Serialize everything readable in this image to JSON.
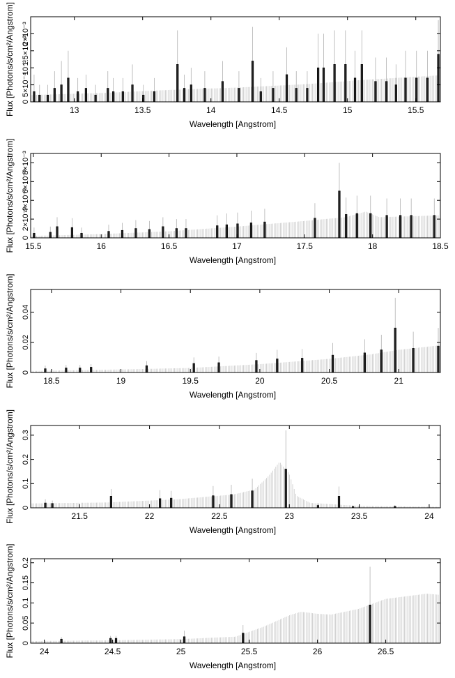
{
  "chart_data": [
    {
      "type": "bar",
      "xlabel": "Wavelength [Angstrom]",
      "ylabel": "Flux [Photons/s/cm²/Angstrom]",
      "xlim": [
        12.68,
        15.68
      ],
      "ylim": [
        0,
        0.0025
      ],
      "xticks": [
        13,
        13.5,
        14,
        14.5,
        15,
        15.5
      ],
      "xtick_labels": [
        "13",
        "13.5",
        "14",
        "14.5",
        "15",
        "15.5"
      ],
      "yticks": [
        0,
        0.0005,
        0.001,
        0.0015,
        0.002
      ],
      "ytick_labels": [
        "0",
        "5×10⁻⁴",
        "10⁻³",
        "1.5×10⁻³",
        "2×10⁻³"
      ],
      "model_points": [
        [
          12.68,
          0.0002
        ],
        [
          13.2,
          0.00026
        ],
        [
          13.7,
          0.00035
        ],
        [
          14.2,
          0.00042
        ],
        [
          14.7,
          0.00052
        ],
        [
          15.1,
          0.00064
        ],
        [
          15.68,
          0.00078
        ]
      ],
      "data_bars": [
        [
          12.7,
          0.0003,
          0.0005
        ],
        [
          12.74,
          0.0002,
          0.0003
        ],
        [
          12.8,
          0.0002,
          0.0003
        ],
        [
          12.85,
          0.0004,
          0.0005
        ],
        [
          12.9,
          0.0005,
          0.0007
        ],
        [
          12.95,
          0.0007,
          0.0008
        ],
        [
          13.02,
          0.0003,
          0.0004
        ],
        [
          13.08,
          0.0004,
          0.0004
        ],
        [
          13.15,
          0.0002,
          0.0003
        ],
        [
          13.24,
          0.0004,
          0.0005
        ],
        [
          13.28,
          0.0003,
          0.0004
        ],
        [
          13.35,
          0.0003,
          0.0004
        ],
        [
          13.42,
          0.0005,
          0.0006
        ],
        [
          13.5,
          0.0002,
          0.0003
        ],
        [
          13.58,
          0.0003,
          0.0004
        ],
        [
          13.75,
          0.0011,
          0.001
        ],
        [
          13.8,
          0.0004,
          0.0004
        ],
        [
          13.85,
          0.0005,
          0.0005
        ],
        [
          13.95,
          0.0004,
          0.0005
        ],
        [
          14.08,
          0.0006,
          0.0006
        ],
        [
          14.2,
          0.0004,
          0.0005
        ],
        [
          14.3,
          0.0012,
          0.001
        ],
        [
          14.36,
          0.0003,
          0.0004
        ],
        [
          14.45,
          0.0004,
          0.0005
        ],
        [
          14.55,
          0.0008,
          0.0008
        ],
        [
          14.62,
          0.0004,
          0.0005
        ],
        [
          14.7,
          0.0004,
          0.0005
        ],
        [
          14.78,
          0.001,
          0.001
        ],
        [
          14.82,
          0.001,
          0.001
        ],
        [
          14.9,
          0.0011,
          0.001
        ],
        [
          14.98,
          0.0011,
          0.001
        ],
        [
          15.05,
          0.0007,
          0.0008
        ],
        [
          15.1,
          0.0011,
          0.001
        ],
        [
          15.2,
          0.0006,
          0.0007
        ],
        [
          15.28,
          0.0006,
          0.0007
        ],
        [
          15.35,
          0.0005,
          0.0006
        ],
        [
          15.42,
          0.0007,
          0.0008
        ],
        [
          15.5,
          0.0007,
          0.0008
        ],
        [
          15.58,
          0.0007,
          0.0008
        ],
        [
          15.66,
          0.0014,
          0.001
        ]
      ]
    },
    {
      "type": "bar",
      "xlabel": "Wavelength [Angstrom]",
      "ylabel": "Flux [Photons/s/cm²/Angstrom]",
      "xlim": [
        15.48,
        18.5
      ],
      "ylim": [
        0,
        0.009
      ],
      "xticks": [
        15.5,
        16,
        16.5,
        17,
        17.5,
        18,
        18.5
      ],
      "xtick_labels": [
        "15.5",
        "16",
        "16.5",
        "17",
        "17.5",
        "18",
        "18.5"
      ],
      "yticks": [
        0,
        0.002,
        0.004,
        0.006,
        0.008
      ],
      "ytick_labels": [
        "0",
        "2×10⁻³",
        "4×10⁻³",
        "6×10⁻³",
        "8×10⁻³"
      ],
      "model_points": [
        [
          15.48,
          0.0002
        ],
        [
          16.0,
          0.0004
        ],
        [
          16.5,
          0.0007
        ],
        [
          17.0,
          0.0012
        ],
        [
          17.5,
          0.0018
        ],
        [
          17.8,
          0.0022
        ],
        [
          17.95,
          0.0028
        ],
        [
          18.05,
          0.0022
        ],
        [
          18.5,
          0.0024
        ]
      ],
      "data_bars": [
        [
          15.5,
          0.0005,
          0.0006
        ],
        [
          15.62,
          0.0006,
          0.0006
        ],
        [
          15.67,
          0.0012,
          0.001
        ],
        [
          15.78,
          0.0011,
          0.001
        ],
        [
          15.85,
          0.0005,
          0.0006
        ],
        [
          16.05,
          0.0007,
          0.0007
        ],
        [
          16.15,
          0.0008,
          0.0008
        ],
        [
          16.25,
          0.001,
          0.0009
        ],
        [
          16.35,
          0.0009,
          0.0009
        ],
        [
          16.45,
          0.0012,
          0.001
        ],
        [
          16.55,
          0.001,
          0.001
        ],
        [
          16.62,
          0.001,
          0.001
        ],
        [
          16.85,
          0.0013,
          0.0011
        ],
        [
          16.92,
          0.0014,
          0.0012
        ],
        [
          17.0,
          0.0015,
          0.0012
        ],
        [
          17.1,
          0.0016,
          0.0013
        ],
        [
          17.2,
          0.0017,
          0.0014
        ],
        [
          17.57,
          0.0021,
          0.0016
        ],
        [
          17.75,
          0.005,
          0.003
        ],
        [
          17.8,
          0.0025,
          0.0018
        ],
        [
          17.88,
          0.0026,
          0.0019
        ],
        [
          17.98,
          0.0026,
          0.0019
        ],
        [
          18.1,
          0.0024,
          0.0018
        ],
        [
          18.2,
          0.0024,
          0.0018
        ],
        [
          18.28,
          0.0024,
          0.0018
        ],
        [
          18.45,
          0.0024,
          0.0018
        ]
      ]
    },
    {
      "type": "bar",
      "xlabel": "Wavelength [Angstrom]",
      "ylabel": "Flux [Photons/s/cm²/Angstrom]",
      "xlim": [
        18.35,
        21.3
      ],
      "ylim": [
        0,
        0.055
      ],
      "xticks": [
        18.5,
        19,
        19.5,
        20,
        20.5,
        21
      ],
      "xtick_labels": [
        "18.5",
        "19",
        "19.5",
        "20",
        "20.5",
        "21"
      ],
      "yticks": [
        0,
        0.02,
        0.04
      ],
      "ytick_labels": [
        "0",
        "0.02",
        "0.04"
      ],
      "model_points": [
        [
          18.35,
          0.001
        ],
        [
          19.0,
          0.002
        ],
        [
          19.5,
          0.003
        ],
        [
          20.0,
          0.0055
        ],
        [
          20.5,
          0.009
        ],
        [
          20.8,
          0.012
        ],
        [
          21.0,
          0.015
        ],
        [
          21.3,
          0.018
        ]
      ],
      "data_bars": [
        [
          18.45,
          0.0025,
          0.002
        ],
        [
          18.6,
          0.003,
          0.002
        ],
        [
          18.7,
          0.003,
          0.002
        ],
        [
          18.78,
          0.0035,
          0.002
        ],
        [
          19.18,
          0.0045,
          0.003
        ],
        [
          19.52,
          0.006,
          0.004
        ],
        [
          19.7,
          0.0065,
          0.004
        ],
        [
          19.97,
          0.008,
          0.005
        ],
        [
          20.12,
          0.009,
          0.006
        ],
        [
          20.3,
          0.0095,
          0.006
        ],
        [
          20.52,
          0.0115,
          0.008
        ],
        [
          20.75,
          0.013,
          0.009
        ],
        [
          20.87,
          0.015,
          0.01
        ],
        [
          20.97,
          0.0295,
          0.02
        ],
        [
          21.1,
          0.016,
          0.011
        ],
        [
          21.28,
          0.0175,
          0.012
        ]
      ]
    },
    {
      "type": "bar",
      "xlabel": "Wavelength [Angstrom]",
      "ylabel": "Flux [Photons/s/cm²/Angstrom]",
      "xlim": [
        21.15,
        24.08
      ],
      "ylim": [
        0,
        0.34
      ],
      "xticks": [
        21.5,
        22,
        22.5,
        23,
        23.5,
        24
      ],
      "xtick_labels": [
        "21.5",
        "22",
        "22.5",
        "23",
        "23.5",
        "24"
      ],
      "yticks": [
        0,
        0.1,
        0.2,
        0.3
      ],
      "ytick_labels": [
        "0",
        "0.1",
        "0.2",
        "0.3"
      ],
      "model_points": [
        [
          21.15,
          0.018
        ],
        [
          21.7,
          0.022
        ],
        [
          22.2,
          0.035
        ],
        [
          22.6,
          0.055
        ],
        [
          22.75,
          0.075
        ],
        [
          22.85,
          0.13
        ],
        [
          22.93,
          0.19
        ],
        [
          23.0,
          0.14
        ],
        [
          23.05,
          0.05
        ],
        [
          23.15,
          0.02
        ],
        [
          23.5,
          0.008
        ],
        [
          24.08,
          0.004
        ]
      ],
      "data_bars": [
        [
          21.25,
          0.02,
          0.015
        ],
        [
          21.3,
          0.018,
          0.012
        ],
        [
          21.72,
          0.048,
          0.03
        ],
        [
          22.07,
          0.038,
          0.035
        ],
        [
          22.15,
          0.04,
          0.03
        ],
        [
          22.45,
          0.05,
          0.04
        ],
        [
          22.58,
          0.055,
          0.04
        ],
        [
          22.73,
          0.07,
          0.05
        ],
        [
          22.97,
          0.16,
          0.16
        ],
        [
          23.2,
          0.01,
          0.008
        ],
        [
          23.35,
          0.048,
          0.04
        ],
        [
          23.45,
          0.005,
          0.005
        ],
        [
          23.75,
          0.006,
          0.005
        ]
      ]
    },
    {
      "type": "bar",
      "xlabel": "Wavelength [Angstrom]",
      "ylabel": "Flux [Photons/s/cm²/Angstrom]",
      "xlim": [
        23.9,
        26.9
      ],
      "ylim": [
        0,
        0.21
      ],
      "xticks": [
        24,
        24.5,
        25,
        25.5,
        26,
        26.5
      ],
      "xtick_labels": [
        "24",
        "24.5",
        "25",
        "25.5",
        "26",
        "26.5"
      ],
      "yticks": [
        0,
        0.05,
        0.1,
        0.15,
        0.2
      ],
      "ytick_labels": [
        "0",
        "0.05",
        "0.1",
        "0.15",
        "0.2"
      ],
      "model_points": [
        [
          23.9,
          0.005
        ],
        [
          24.5,
          0.007
        ],
        [
          25.0,
          0.01
        ],
        [
          25.4,
          0.016
        ],
        [
          25.6,
          0.04
        ],
        [
          25.8,
          0.07
        ],
        [
          25.88,
          0.078
        ],
        [
          26.0,
          0.073
        ],
        [
          26.1,
          0.071
        ],
        [
          26.3,
          0.085
        ],
        [
          26.5,
          0.11
        ],
        [
          26.8,
          0.123
        ],
        [
          26.9,
          0.12
        ]
      ],
      "data_bars": [
        [
          24.12,
          0.01,
          0.005
        ],
        [
          24.48,
          0.012,
          0.006
        ],
        [
          24.52,
          0.012,
          0.006
        ],
        [
          25.02,
          0.016,
          0.015
        ],
        [
          25.45,
          0.025,
          0.02
        ],
        [
          26.38,
          0.095,
          0.095
        ]
      ]
    }
  ]
}
